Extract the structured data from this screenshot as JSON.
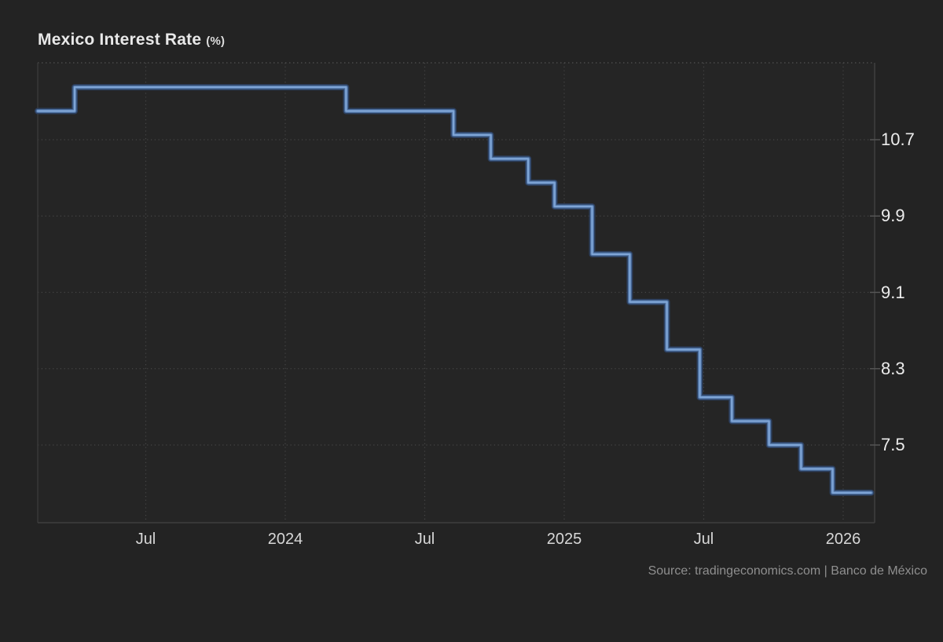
{
  "header": {
    "title": "Mexico Interest Rate",
    "title_unit": "(%)"
  },
  "footer": {
    "source": "Source: tradingeconomics.com | Banco de México"
  },
  "chart_data": {
    "type": "line",
    "subtype": "step",
    "title": "Mexico Interest Rate (%)",
    "ylabel": "Interest Rate (%)",
    "xlabel": "",
    "grid": "dotted",
    "legend_position": "none",
    "y_axis_side": "right",
    "x_domain": [
      2023.1127,
      2026.1127
    ],
    "y_view_range": [
      6.69,
      11.51
    ],
    "y_ticks": [
      {
        "value": 10.7,
        "label": "10.7"
      },
      {
        "value": 9.9,
        "label": "9.9"
      },
      {
        "value": 9.1,
        "label": "9.1"
      },
      {
        "value": 8.3,
        "label": "8.3"
      },
      {
        "value": 7.5,
        "label": "7.5"
      }
    ],
    "x_ticks": [
      {
        "value": 2023.5,
        "label": "Jul"
      },
      {
        "value": 2024.0,
        "label": "2024"
      },
      {
        "value": 2024.5,
        "label": "Jul"
      },
      {
        "value": 2025.0,
        "label": "2025"
      },
      {
        "value": 2025.5,
        "label": "Jul"
      },
      {
        "value": 2026.0,
        "label": "2026"
      }
    ],
    "series": [
      {
        "name": "Mexico Interest Rate",
        "unit": "%",
        "points": [
          {
            "date": "Feb 2023",
            "x": 2023.1127,
            "rate": 11.0
          },
          {
            "date": "Mar 2023",
            "x": 2023.245,
            "rate": 11.25
          },
          {
            "date": "Mar 2024",
            "x": 2024.218,
            "rate": 11.0
          },
          {
            "date": "Aug 2024",
            "x": 2024.603,
            "rate": 10.75
          },
          {
            "date": "Sep 2024",
            "x": 2024.737,
            "rate": 10.5
          },
          {
            "date": "Nov 2024",
            "x": 2024.871,
            "rate": 10.25
          },
          {
            "date": "Dec 2024",
            "x": 2024.965,
            "rate": 10.0
          },
          {
            "date": "Feb 2025",
            "x": 2025.1,
            "rate": 9.5
          },
          {
            "date": "Mar 2025",
            "x": 2025.235,
            "rate": 9.0
          },
          {
            "date": "May 2025",
            "x": 2025.368,
            "rate": 8.5
          },
          {
            "date": "Jun 2025",
            "x": 2025.486,
            "rate": 8.0
          },
          {
            "date": "Aug 2025",
            "x": 2025.601,
            "rate": 7.75
          },
          {
            "date": "Sep 2025",
            "x": 2025.734,
            "rate": 7.5
          },
          {
            "date": "Nov 2025",
            "x": 2025.849,
            "rate": 7.25
          },
          {
            "date": "Dec 2025",
            "x": 2025.962,
            "rate": 7.0
          },
          {
            "date": "Feb 2026",
            "x": 2026.1,
            "rate": 7.0
          }
        ]
      }
    ],
    "colors": {
      "line_core": "#7fa5d6",
      "line_mid": "#4a6d9d",
      "line_edge": "#2c3e5c",
      "grid": "#464646",
      "border_solid": "#3d3d3d",
      "border_dotted": "#4a4a4a",
      "plot_background": "#252525",
      "page_background": "#232323",
      "tick_text": "#d7d7d7",
      "value_text": "#ececec"
    }
  }
}
